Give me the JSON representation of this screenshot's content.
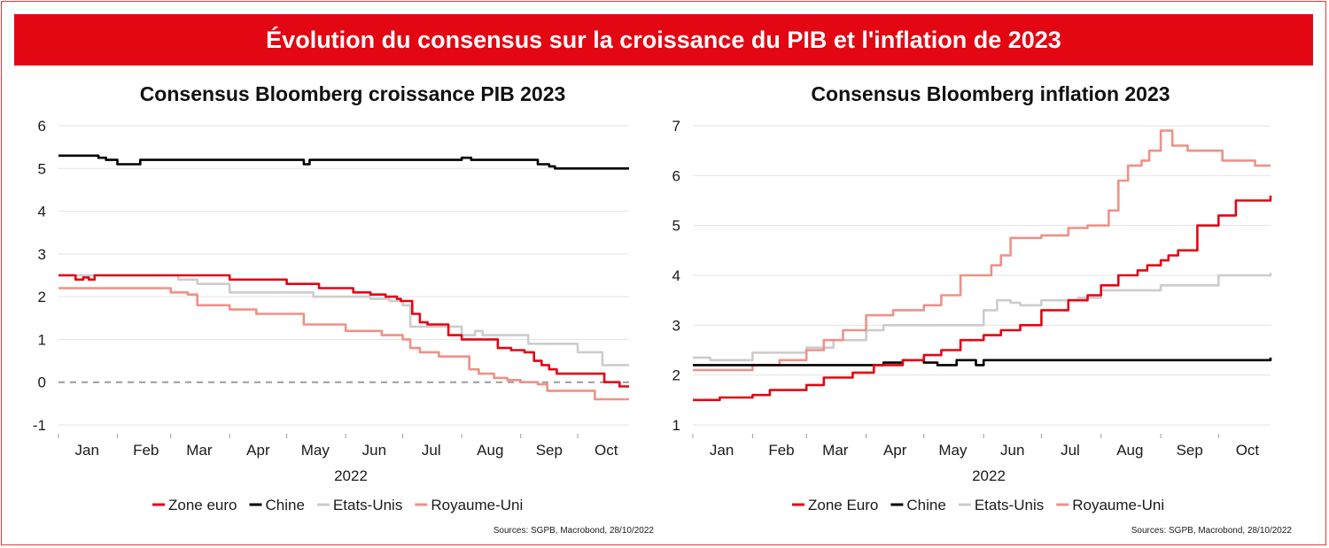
{
  "banner_title": "Évolution du consensus sur la croissance du PIB et l'inflation de 2023",
  "chart_data": [
    {
      "type": "line",
      "title": "Consensus Bloomberg croissance PIB 2023",
      "xlabel": "2022",
      "ylabel": "",
      "x_ticks": [
        "Jan",
        "Feb",
        "Mar",
        "Apr",
        "May",
        "Jun",
        "Jul",
        "Aug",
        "Sep",
        "Oct"
      ],
      "y_ticks": [
        6,
        5,
        4,
        3,
        2,
        1,
        0,
        -1
      ],
      "ylim": [
        -1,
        6
      ],
      "xlim": [
        "2022-01-01",
        "2022-10-28"
      ],
      "grid": true,
      "zero_line": "dashed",
      "legend_position": "bottom",
      "source": "Sources: SGPB, Macrobond,  28/10/2022",
      "series": [
        {
          "name": "Zone euro",
          "color": "#e30613",
          "x": [
            "2022-01-01",
            "2022-01-10",
            "2022-01-14",
            "2022-01-17",
            "2022-01-20",
            "2022-01-24",
            "2022-02-01",
            "2022-03-01",
            "2022-04-01",
            "2022-05-01",
            "2022-05-18",
            "2022-06-05",
            "2022-06-14",
            "2022-06-22",
            "2022-06-28",
            "2022-06-30",
            "2022-07-06",
            "2022-07-10",
            "2022-07-14",
            "2022-07-25",
            "2022-08-01",
            "2022-08-20",
            "2022-08-27",
            "2022-09-03",
            "2022-09-08",
            "2022-09-12",
            "2022-09-16",
            "2022-09-20",
            "2022-09-25",
            "2022-09-30",
            "2022-10-05",
            "2022-10-10",
            "2022-10-15",
            "2022-10-20",
            "2022-10-23",
            "2022-10-28"
          ],
          "y": [
            2.5,
            2.4,
            2.45,
            2.4,
            2.5,
            2.5,
            2.5,
            2.5,
            2.4,
            2.3,
            2.2,
            2.1,
            2.05,
            2.0,
            1.95,
            1.9,
            1.6,
            1.4,
            1.35,
            1.1,
            1.0,
            0.8,
            0.75,
            0.7,
            0.5,
            0.4,
            0.3,
            0.2,
            0.2,
            0.2,
            0.2,
            0.2,
            0.0,
            0.0,
            -0.1,
            -0.1
          ]
        },
        {
          "name": "Chine",
          "color": "#000000",
          "x": [
            "2022-01-01",
            "2022-01-15",
            "2022-01-22",
            "2022-01-26",
            "2022-02-01",
            "2022-02-10",
            "2022-02-13",
            "2022-03-01",
            "2022-04-01",
            "2022-04-20",
            "2022-05-01",
            "2022-05-10",
            "2022-05-13",
            "2022-06-01",
            "2022-07-01",
            "2022-07-25",
            "2022-08-01",
            "2022-08-04",
            "2022-08-06",
            "2022-09-01",
            "2022-09-06",
            "2022-09-10",
            "2022-09-14",
            "2022-09-16",
            "2022-09-19",
            "2022-10-01",
            "2022-10-28"
          ],
          "y": [
            5.3,
            5.3,
            5.25,
            5.2,
            5.1,
            5.1,
            5.2,
            5.2,
            5.2,
            5.2,
            5.2,
            5.1,
            5.2,
            5.2,
            5.2,
            5.2,
            5.25,
            5.25,
            5.2,
            5.2,
            5.2,
            5.1,
            5.1,
            5.05,
            5.0,
            5.0,
            5.0
          ]
        },
        {
          "name": "Etats-Unis",
          "color": "#cccccc",
          "x": [
            "2022-01-01",
            "2022-02-01",
            "2022-03-01",
            "2022-03-05",
            "2022-03-15",
            "2022-04-01",
            "2022-05-01",
            "2022-05-15",
            "2022-06-01",
            "2022-06-14",
            "2022-06-24",
            "2022-07-01",
            "2022-07-05",
            "2022-07-25",
            "2022-08-01",
            "2022-08-08",
            "2022-08-12",
            "2022-08-22",
            "2022-09-05",
            "2022-09-20",
            "2022-10-01",
            "2022-10-06",
            "2022-10-14",
            "2022-10-28"
          ],
          "y": [
            2.5,
            2.5,
            2.5,
            2.4,
            2.3,
            2.1,
            2.1,
            2.0,
            2.0,
            1.95,
            1.9,
            1.8,
            1.3,
            1.3,
            1.1,
            1.2,
            1.1,
            1.1,
            0.9,
            0.9,
            0.7,
            0.7,
            0.4,
            0.4
          ]
        },
        {
          "name": "Royaume-Uni",
          "color": "#ee9188",
          "x": [
            "2022-01-01",
            "2022-02-01",
            "2022-03-01",
            "2022-03-10",
            "2022-03-15",
            "2022-04-01",
            "2022-04-15",
            "2022-05-01",
            "2022-05-10",
            "2022-06-01",
            "2022-06-20",
            "2022-07-01",
            "2022-07-05",
            "2022-07-10",
            "2022-07-20",
            "2022-08-01",
            "2022-08-05",
            "2022-08-10",
            "2022-08-18",
            "2022-08-25",
            "2022-09-01",
            "2022-09-10",
            "2022-09-15",
            "2022-10-01",
            "2022-10-10",
            "2022-10-28"
          ],
          "y": [
            2.2,
            2.2,
            2.1,
            2.05,
            1.8,
            1.7,
            1.6,
            1.6,
            1.35,
            1.2,
            1.1,
            1.0,
            0.8,
            0.7,
            0.6,
            0.6,
            0.3,
            0.2,
            0.1,
            0.05,
            0.0,
            -0.05,
            -0.2,
            -0.2,
            -0.4,
            -0.4
          ]
        }
      ]
    },
    {
      "type": "line",
      "title": "Consensus Bloomberg inflation 2023",
      "xlabel": "2022",
      "ylabel": "",
      "x_ticks": [
        "Jan",
        "Feb",
        "Mar",
        "Apr",
        "May",
        "Jun",
        "Jul",
        "Aug",
        "Sep",
        "Oct"
      ],
      "y_ticks": [
        7,
        6,
        5,
        4,
        3,
        2,
        1
      ],
      "ylim": [
        1,
        7
      ],
      "xlim": [
        "2022-01-01",
        "2022-10-28"
      ],
      "grid": true,
      "legend_position": "bottom",
      "source": "Sources: SGPB, Macrobond,  28/10/2022",
      "series": [
        {
          "name": "Zone Euro",
          "color": "#e30613",
          "x": [
            "2022-01-01",
            "2022-01-15",
            "2022-02-01",
            "2022-02-10",
            "2022-03-01",
            "2022-03-10",
            "2022-03-25",
            "2022-04-05",
            "2022-04-20",
            "2022-05-01",
            "2022-05-10",
            "2022-05-20",
            "2022-06-01",
            "2022-06-10",
            "2022-06-20",
            "2022-07-01",
            "2022-07-15",
            "2022-07-25",
            "2022-08-01",
            "2022-08-10",
            "2022-08-20",
            "2022-08-25",
            "2022-09-01",
            "2022-09-05",
            "2022-09-10",
            "2022-09-20",
            "2022-10-01",
            "2022-10-10",
            "2022-10-20",
            "2022-10-28"
          ],
          "y": [
            1.5,
            1.55,
            1.6,
            1.7,
            1.8,
            1.95,
            2.05,
            2.2,
            2.3,
            2.4,
            2.5,
            2.7,
            2.8,
            2.9,
            3.0,
            3.3,
            3.5,
            3.6,
            3.8,
            4.0,
            4.1,
            4.2,
            4.3,
            4.4,
            4.5,
            5.0,
            5.2,
            5.5,
            5.5,
            5.6
          ]
        },
        {
          "name": "Chine",
          "color": "#000000",
          "x": [
            "2022-01-01",
            "2022-03-01",
            "2022-03-20",
            "2022-04-10",
            "2022-04-20",
            "2022-05-01",
            "2022-05-08",
            "2022-05-12",
            "2022-05-18",
            "2022-05-28",
            "2022-06-01",
            "2022-06-15",
            "2022-07-01",
            "2022-08-01",
            "2022-09-01",
            "2022-10-01",
            "2022-10-26",
            "2022-10-28"
          ],
          "y": [
            2.2,
            2.2,
            2.2,
            2.25,
            2.3,
            2.25,
            2.2,
            2.2,
            2.3,
            2.2,
            2.3,
            2.3,
            2.3,
            2.3,
            2.3,
            2.3,
            2.3,
            2.35
          ]
        },
        {
          "name": "Etats-Unis",
          "color": "#cccccc",
          "x": [
            "2022-01-01",
            "2022-01-10",
            "2022-02-01",
            "2022-03-01",
            "2022-03-15",
            "2022-04-01",
            "2022-04-10",
            "2022-05-01",
            "2022-06-01",
            "2022-06-08",
            "2022-06-15",
            "2022-06-20",
            "2022-07-01",
            "2022-07-20",
            "2022-08-01",
            "2022-08-15",
            "2022-09-01",
            "2022-10-01",
            "2022-10-28"
          ],
          "y": [
            2.35,
            2.3,
            2.45,
            2.55,
            2.7,
            2.9,
            3.0,
            3.0,
            3.3,
            3.5,
            3.45,
            3.4,
            3.5,
            3.55,
            3.7,
            3.7,
            3.8,
            4.0,
            4.05
          ]
        },
        {
          "name": "Royaume-Uni",
          "color": "#ee9188",
          "x": [
            "2022-01-01",
            "2022-02-01",
            "2022-02-15",
            "2022-03-01",
            "2022-03-10",
            "2022-03-20",
            "2022-04-01",
            "2022-04-15",
            "2022-05-01",
            "2022-05-10",
            "2022-05-20",
            "2022-06-01",
            "2022-06-05",
            "2022-06-10",
            "2022-06-15",
            "2022-07-01",
            "2022-07-15",
            "2022-07-25",
            "2022-08-01",
            "2022-08-05",
            "2022-08-10",
            "2022-08-15",
            "2022-08-22",
            "2022-08-26",
            "2022-09-01",
            "2022-09-07",
            "2022-09-09",
            "2022-09-15",
            "2022-10-01",
            "2022-10-03",
            "2022-10-10",
            "2022-10-20",
            "2022-10-28"
          ],
          "y": [
            2.1,
            2.2,
            2.3,
            2.5,
            2.7,
            2.9,
            3.2,
            3.3,
            3.4,
            3.6,
            4.0,
            4.0,
            4.2,
            4.4,
            4.75,
            4.8,
            4.95,
            5.0,
            5.0,
            5.3,
            5.9,
            6.2,
            6.3,
            6.5,
            6.9,
            6.6,
            6.6,
            6.5,
            6.5,
            6.3,
            6.3,
            6.2,
            6.2
          ]
        }
      ]
    }
  ]
}
